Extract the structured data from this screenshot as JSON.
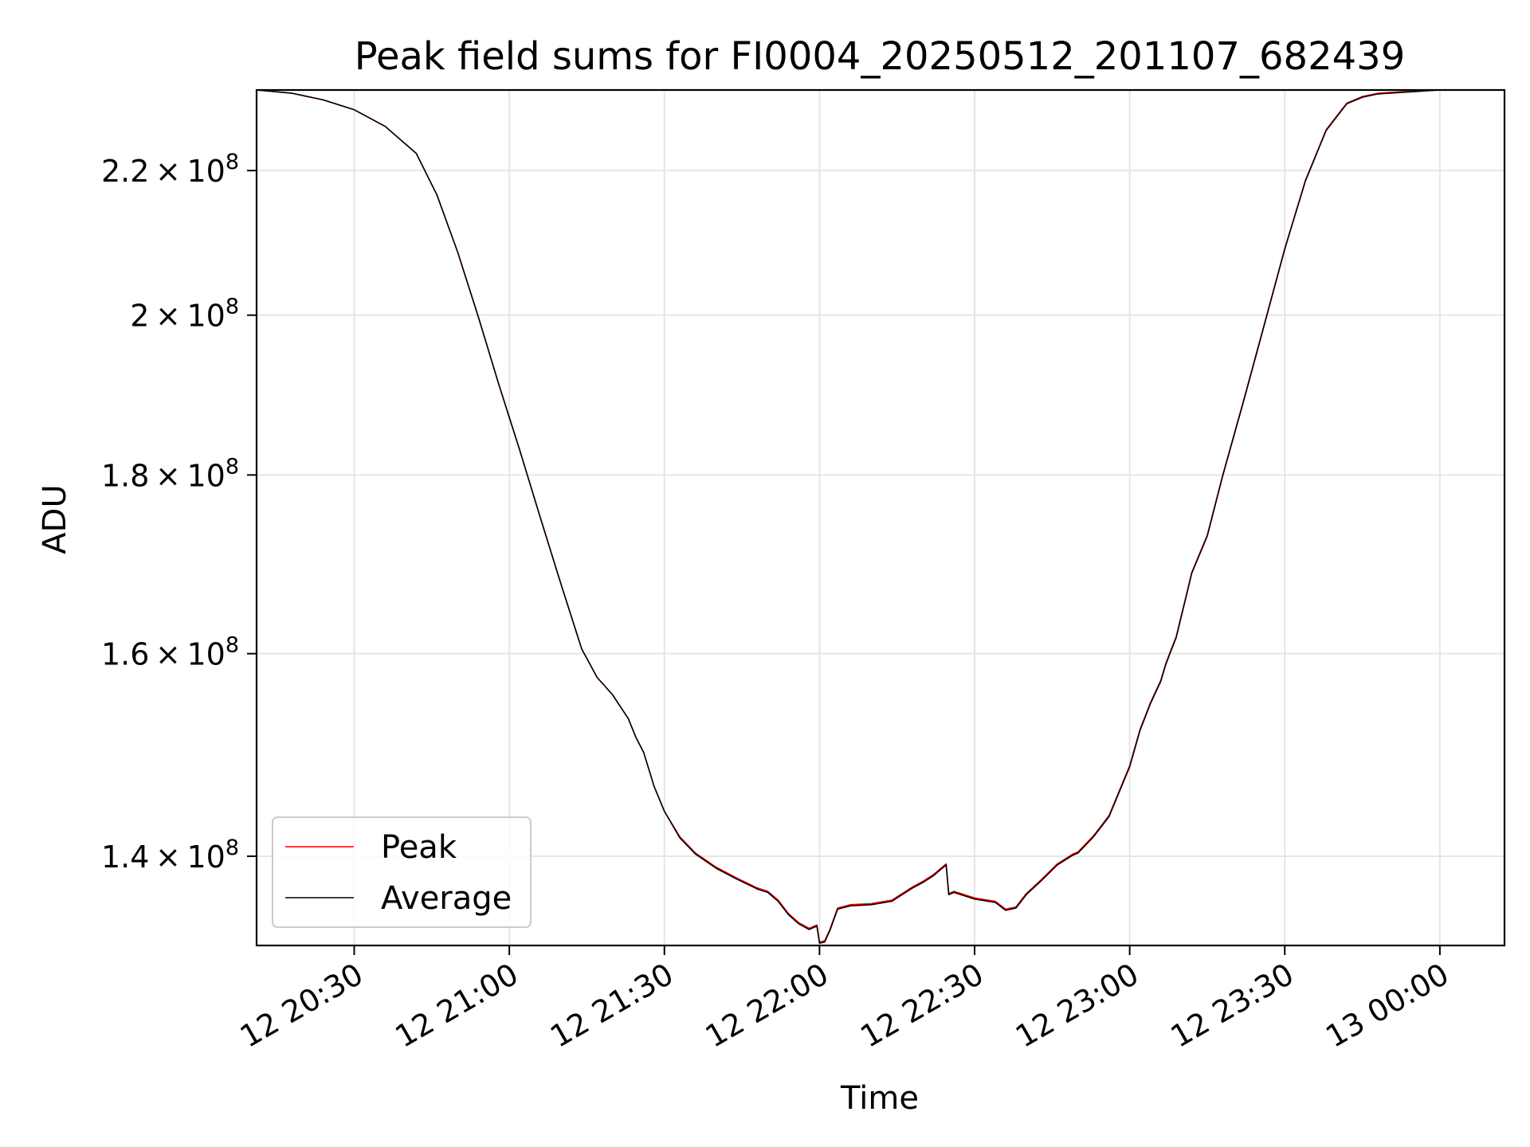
{
  "chart_data": {
    "type": "line",
    "title": "Peak field sums for FI0004_20250512_201107_682439",
    "xlabel": "Time",
    "ylabel": "ADU",
    "y_scale": "log",
    "grid": true,
    "legend_position": "lower-left",
    "xlim": [
      "2025-05-12 20:11:07",
      "2025-05-13 00:12:30"
    ],
    "ylim": [
      132000000,
      232000000
    ],
    "x_ticks": [
      {
        "value": "2025-05-12 20:30:00",
        "label": "12 20:30"
      },
      {
        "value": "2025-05-12 21:00:00",
        "label": "12 21:00"
      },
      {
        "value": "2025-05-12 21:30:00",
        "label": "12 21:30"
      },
      {
        "value": "2025-05-12 22:00:00",
        "label": "12 22:00"
      },
      {
        "value": "2025-05-12 22:30:00",
        "label": "12 22:30"
      },
      {
        "value": "2025-05-12 23:00:00",
        "label": "12 23:00"
      },
      {
        "value": "2025-05-12 23:30:00",
        "label": "12 23:30"
      },
      {
        "value": "2025-05-13 00:00:00",
        "label": "13 00:00"
      }
    ],
    "y_ticks": [
      {
        "value": 140000000,
        "mantissa": "1.4",
        "exponent": "8"
      },
      {
        "value": 160000000,
        "mantissa": "1.6",
        "exponent": "8"
      },
      {
        "value": 180000000,
        "mantissa": "1.8",
        "exponent": "8"
      },
      {
        "value": 200000000,
        "mantissa": "2",
        "exponent": "8"
      },
      {
        "value": 220000000,
        "mantissa": "2.2",
        "exponent": "8"
      }
    ],
    "x": [
      "2025-05-12 20:11:07",
      "2025-05-12 20:18:00",
      "2025-05-12 20:24:00",
      "2025-05-12 20:30:00",
      "2025-05-12 20:36:00",
      "2025-05-12 20:42:00",
      "2025-05-12 20:46:00",
      "2025-05-12 20:50:00",
      "2025-05-12 20:54:00",
      "2025-05-12 20:58:00",
      "2025-05-12 21:02:00",
      "2025-05-12 21:06:00",
      "2025-05-12 21:10:00",
      "2025-05-12 21:14:00",
      "2025-05-12 21:17:00",
      "2025-05-12 21:18:30",
      "2025-05-12 21:20:00",
      "2025-05-12 21:21:30",
      "2025-05-12 21:23:00",
      "2025-05-12 21:24:30",
      "2025-05-12 21:26:00",
      "2025-05-12 21:28:00",
      "2025-05-12 21:30:00",
      "2025-05-12 21:33:00",
      "2025-05-12 21:36:00",
      "2025-05-12 21:40:00",
      "2025-05-12 21:44:00",
      "2025-05-12 21:48:00",
      "2025-05-12 21:50:00",
      "2025-05-12 21:52:00",
      "2025-05-12 21:54:00",
      "2025-05-12 21:56:00",
      "2025-05-12 21:58:00",
      "2025-05-12 21:59:30",
      "2025-05-12 22:00:00",
      "2025-05-12 22:01:00",
      "2025-05-12 22:02:00",
      "2025-05-12 22:03:30",
      "2025-05-12 22:06:00",
      "2025-05-12 22:10:00",
      "2025-05-12 22:14:00",
      "2025-05-12 22:18:00",
      "2025-05-12 22:20:00",
      "2025-05-12 22:22:00",
      "2025-05-12 22:24:30",
      "2025-05-12 22:25:00",
      "2025-05-12 22:26:00",
      "2025-05-12 22:30:00",
      "2025-05-12 22:34:00",
      "2025-05-12 22:36:00",
      "2025-05-12 22:38:00",
      "2025-05-12 22:40:00",
      "2025-05-12 22:43:00",
      "2025-05-12 22:46:00",
      "2025-05-12 22:49:00",
      "2025-05-12 22:50:00",
      "2025-05-12 22:53:00",
      "2025-05-12 22:56:00",
      "2025-05-12 23:00:00",
      "2025-05-12 23:02:00",
      "2025-05-12 23:04:00",
      "2025-05-12 23:06:00",
      "2025-05-12 23:07:00",
      "2025-05-12 23:08:00",
      "2025-05-12 23:09:00",
      "2025-05-12 23:10:00",
      "2025-05-12 23:11:00",
      "2025-05-12 23:12:00",
      "2025-05-12 23:15:00",
      "2025-05-12 23:18:00",
      "2025-05-12 23:22:00",
      "2025-05-12 23:26:00",
      "2025-05-12 23:30:00",
      "2025-05-12 23:34:00",
      "2025-05-12 23:38:00",
      "2025-05-12 23:42:00",
      "2025-05-12 23:45:00",
      "2025-05-12 23:48:00",
      "2025-05-12 23:54:00",
      "2025-05-13 00:00:00",
      "2025-05-13 00:06:00",
      "2025-05-13 00:12:30"
    ],
    "series": [
      {
        "name": "Peak",
        "color": "#ff0000",
        "values": [
          232000000,
          231500000,
          230500000,
          229000000,
          226500000,
          222500000,
          216500000,
          208500000,
          199800000,
          191000000,
          183000000,
          175000000,
          167500000,
          160500000,
          157500000,
          156600000,
          155700000,
          154500000,
          153300000,
          151400000,
          149900000,
          146600000,
          144200000,
          141800000,
          140300000,
          139000000,
          138000000,
          137100000,
          136800000,
          136000000,
          134800000,
          134000000,
          133500000,
          133800000,
          132300000,
          132400000,
          133400000,
          135300000,
          135600000,
          135700000,
          136000000,
          137200000,
          137700000,
          138300000,
          139300000,
          136600000,
          136800000,
          136200000,
          135900000,
          135200000,
          135400000,
          136600000,
          137900000,
          139300000,
          140200000,
          140400000,
          141900000,
          143800000,
          148600000,
          152200000,
          154900000,
          157200000,
          159000000,
          160400000,
          161800000,
          164100000,
          166400000,
          168800000,
          173000000,
          180000000,
          189000000,
          198700000,
          209000000,
          218600000,
          226000000,
          230000000,
          231000000,
          231500000,
          231800000,
          232000000,
          232000000,
          232000000
        ]
      },
      {
        "name": "Average",
        "color": "#000000",
        "values": [
          232000000,
          231500000,
          230500000,
          229000000,
          226500000,
          222500000,
          216500000,
          208500000,
          199800000,
          191000000,
          183000000,
          175000000,
          167500000,
          160500000,
          157500000,
          156600000,
          155700000,
          154500000,
          153300000,
          151400000,
          149900000,
          146600000,
          144200000,
          141700000,
          140200000,
          138900000,
          137900000,
          137000000,
          136700000,
          135900000,
          134700000,
          133900000,
          133400000,
          133700000,
          132200000,
          132300000,
          133300000,
          135200000,
          135500000,
          135600000,
          135900000,
          137100000,
          137600000,
          138200000,
          139200000,
          136500000,
          136700000,
          136100000,
          135800000,
          135100000,
          135300000,
          136500000,
          137800000,
          139200000,
          140100000,
          140300000,
          141800000,
          143700000,
          148500000,
          152100000,
          154800000,
          157100000,
          158900000,
          160300000,
          161700000,
          164000000,
          166300000,
          168700000,
          172900000,
          179900000,
          188900000,
          198600000,
          208900000,
          218500000,
          225900000,
          229900000,
          230900000,
          231400000,
          231700000,
          232000000,
          232000000,
          232000000
        ]
      }
    ]
  }
}
